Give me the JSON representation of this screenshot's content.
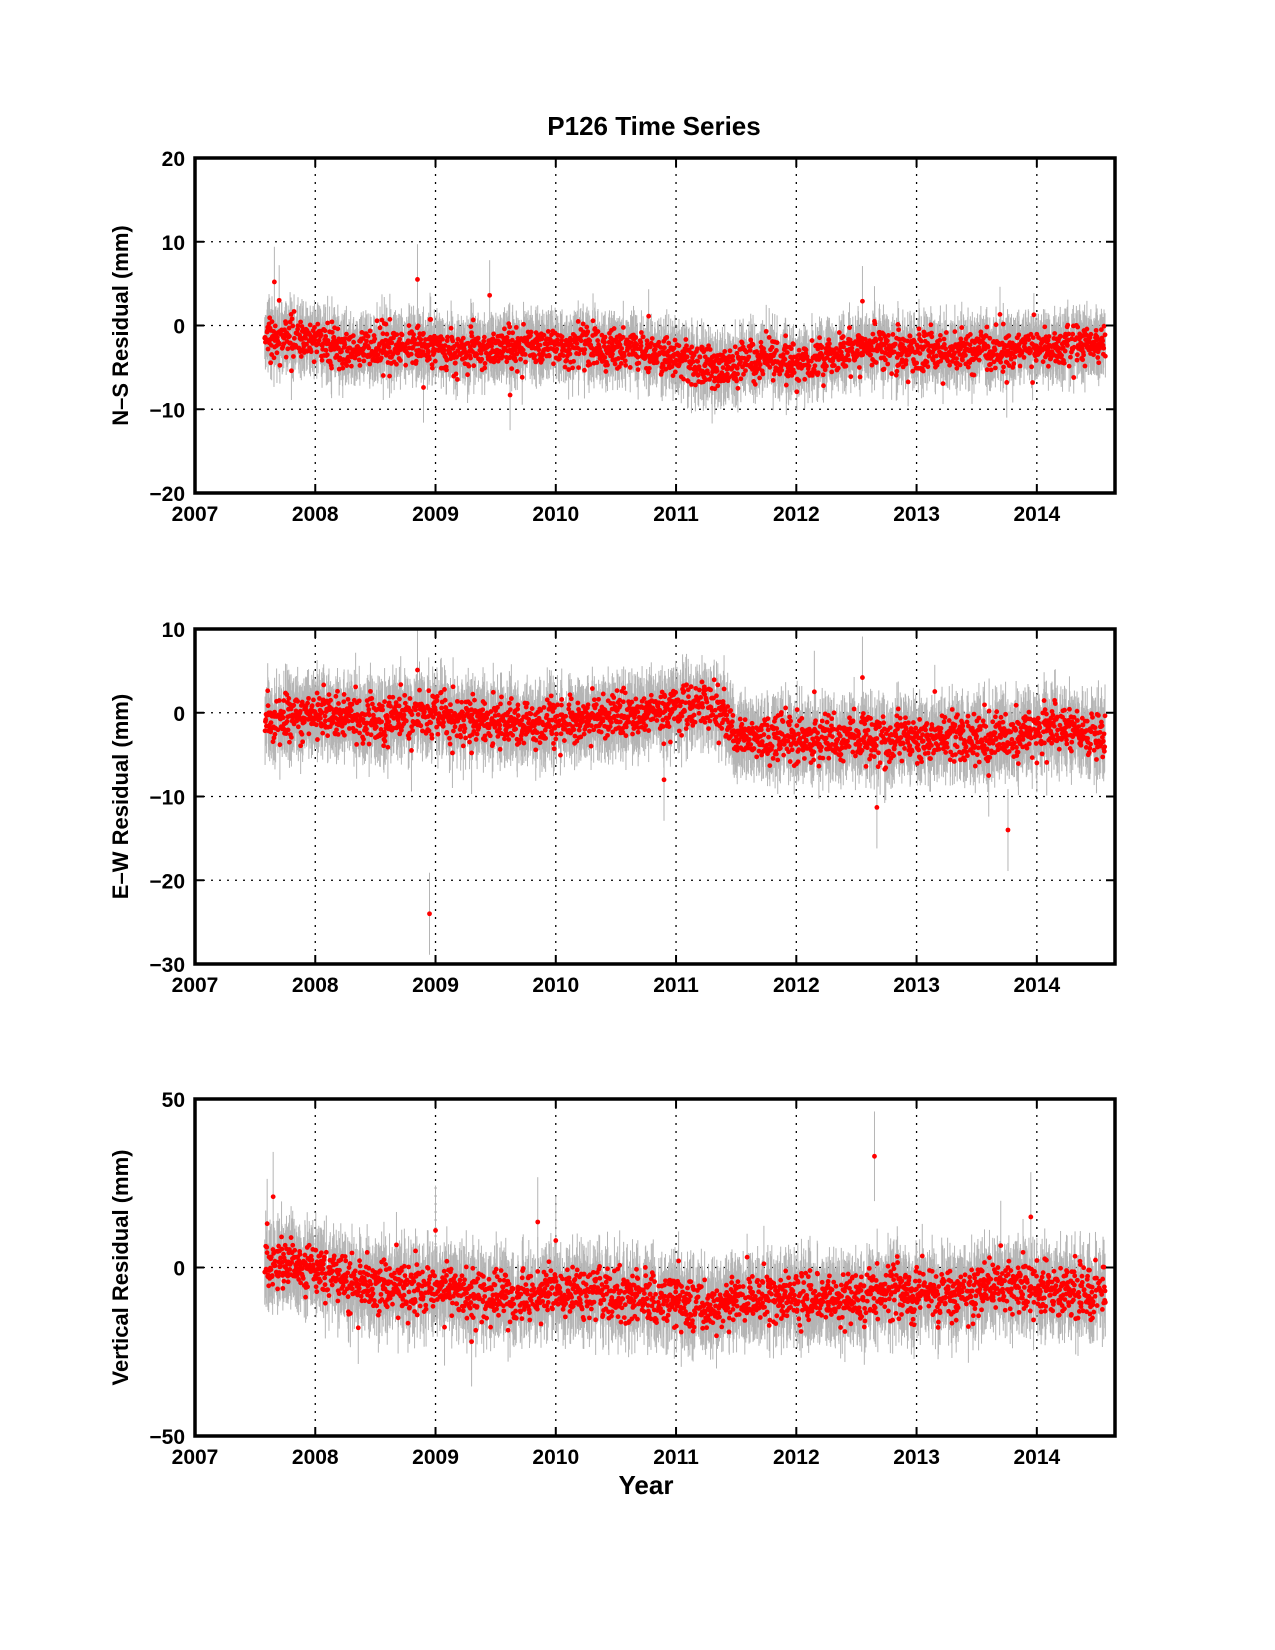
{
  "figure_title": "P126 Time Series",
  "colors": {
    "points": "#ff0000",
    "error_bars": "#b5b5b5",
    "axes": "#000000",
    "background": "#ffffff"
  },
  "chart_data": [
    {
      "type": "scatter",
      "title": "P126 Time Series",
      "xlabel": "",
      "ylabel": "N–S Residual (mm)",
      "xlim": [
        2007,
        2014.65
      ],
      "ylim": [
        -20,
        20
      ],
      "xticks": [
        2007,
        2008,
        2009,
        2010,
        2011,
        2012,
        2013,
        2014
      ],
      "xticklabels": [
        "2007",
        "2008",
        "2009",
        "2010",
        "2011",
        "2012",
        "2013",
        "2014"
      ],
      "yticks": [
        -20,
        -10,
        0,
        10,
        20
      ],
      "yticklabels": [
        "−20",
        "−10",
        "0",
        "10",
        "20"
      ],
      "grid": true,
      "error_bars": true,
      "data_span": [
        2007.58,
        2014.57
      ],
      "trend": [
        [
          2007.58,
          -1.5
        ],
        [
          2007.8,
          -1.2
        ],
        [
          2008.0,
          -1.8
        ],
        [
          2008.3,
          -3.0
        ],
        [
          2008.6,
          -2.6
        ],
        [
          2008.9,
          -2.4
        ],
        [
          2009.2,
          -3.0
        ],
        [
          2009.5,
          -2.6
        ],
        [
          2009.8,
          -2.4
        ],
        [
          2010.2,
          -2.7
        ],
        [
          2010.6,
          -2.9
        ],
        [
          2011.0,
          -3.6
        ],
        [
          2011.35,
          -5.5
        ],
        [
          2011.6,
          -4.0
        ],
        [
          2011.9,
          -4.2
        ],
        [
          2012.3,
          -3.5
        ],
        [
          2012.6,
          -2.6
        ],
        [
          2013.0,
          -3.2
        ],
        [
          2013.4,
          -3.3
        ],
        [
          2013.8,
          -2.6
        ],
        [
          2014.2,
          -2.4
        ],
        [
          2014.57,
          -2.5
        ]
      ],
      "noise_sd": 1.2,
      "outliers": [
        [
          2007.66,
          5.2
        ],
        [
          2007.7,
          3.0
        ],
        [
          2008.85,
          5.5
        ],
        [
          2009.45,
          3.6
        ],
        [
          2008.9,
          -7.4
        ],
        [
          2009.62,
          -8.3
        ],
        [
          2011.3,
          -7.5
        ],
        [
          2012.55,
          2.9
        ],
        [
          2012.65,
          0.5
        ],
        [
          2013.75,
          -6.8
        ],
        [
          2013.8,
          -5.0
        ]
      ]
    },
    {
      "type": "scatter",
      "title": "",
      "xlabel": "",
      "ylabel": "E–W Residual (mm)",
      "xlim": [
        2007,
        2014.65
      ],
      "ylim": [
        -30,
        10
      ],
      "xticks": [
        2007,
        2008,
        2009,
        2010,
        2011,
        2012,
        2013,
        2014
      ],
      "xticklabels": [
        "2007",
        "2008",
        "2009",
        "2010",
        "2011",
        "2012",
        "2013",
        "2014"
      ],
      "yticks": [
        -30,
        -20,
        -10,
        0,
        10
      ],
      "yticklabels": [
        "−30",
        "−20",
        "−10",
        "0",
        "10"
      ],
      "grid": true,
      "error_bars": true,
      "data_span": [
        2007.58,
        2014.57
      ],
      "trend": [
        [
          2007.58,
          -1.0
        ],
        [
          2008.0,
          0.0
        ],
        [
          2008.5,
          -1.0
        ],
        [
          2009.0,
          0.0
        ],
        [
          2009.3,
          -0.8
        ],
        [
          2009.6,
          -1.6
        ],
        [
          2010.0,
          -1.0
        ],
        [
          2010.4,
          -0.5
        ],
        [
          2010.8,
          0.0
        ],
        [
          2011.0,
          0.8
        ],
        [
          2011.35,
          1.0
        ],
        [
          2011.5,
          -3.0
        ],
        [
          2011.8,
          -3.3
        ],
        [
          2012.3,
          -3.0
        ],
        [
          2012.8,
          -3.0
        ],
        [
          2013.3,
          -3.2
        ],
        [
          2013.7,
          -3.0
        ],
        [
          2014.2,
          -2.0
        ],
        [
          2014.57,
          -3.0
        ]
      ],
      "noise_sd": 1.4,
      "outliers": [
        [
          2008.95,
          -24.0
        ],
        [
          2010.9,
          -8.0
        ],
        [
          2012.67,
          -11.3
        ],
        [
          2013.76,
          -14.0
        ],
        [
          2012.55,
          4.2
        ],
        [
          2008.85,
          5.1
        ],
        [
          2012.15,
          2.5
        ],
        [
          2009.3,
          -4.8
        ],
        [
          2008.8,
          -4.5
        ],
        [
          2013.6,
          -7.5
        ]
      ]
    },
    {
      "type": "scatter",
      "title": "",
      "xlabel": "Year",
      "ylabel": "Vertical Residual (mm)",
      "xlim": [
        2007,
        2014.65
      ],
      "ylim": [
        -50,
        50
      ],
      "xticks": [
        2007,
        2008,
        2009,
        2010,
        2011,
        2012,
        2013,
        2014
      ],
      "xticklabels": [
        "2007",
        "2008",
        "2009",
        "2010",
        "2011",
        "2012",
        "2013",
        "2014"
      ],
      "yticks": [
        -50,
        0,
        50
      ],
      "yticklabels": [
        "−50",
        "0",
        "50"
      ],
      "grid": true,
      "error_bars": true,
      "data_span": [
        2007.58,
        2014.57
      ],
      "trend": [
        [
          2007.58,
          1.0
        ],
        [
          2008.0,
          0.0
        ],
        [
          2008.4,
          -5.0
        ],
        [
          2008.9,
          -6.0
        ],
        [
          2009.5,
          -9.0
        ],
        [
          2010.0,
          -7.0
        ],
        [
          2010.5,
          -8.0
        ],
        [
          2011.0,
          -10.0
        ],
        [
          2011.35,
          -12.0
        ],
        [
          2011.7,
          -9.0
        ],
        [
          2012.2,
          -10.0
        ],
        [
          2012.7,
          -7.0
        ],
        [
          2013.2,
          -7.5
        ],
        [
          2013.7,
          -5.0
        ],
        [
          2014.2,
          -7.0
        ],
        [
          2014.57,
          -6.5
        ]
      ],
      "noise_sd": 3.8,
      "outliers": [
        [
          2007.65,
          21.0
        ],
        [
          2007.6,
          13.0
        ],
        [
          2012.65,
          33.0
        ],
        [
          2013.95,
          15.0
        ],
        [
          2009.85,
          13.5
        ],
        [
          2010.0,
          8.0
        ],
        [
          2009.3,
          -22.0
        ],
        [
          2009.0,
          11.0
        ],
        [
          2013.7,
          6.5
        ]
      ]
    }
  ]
}
